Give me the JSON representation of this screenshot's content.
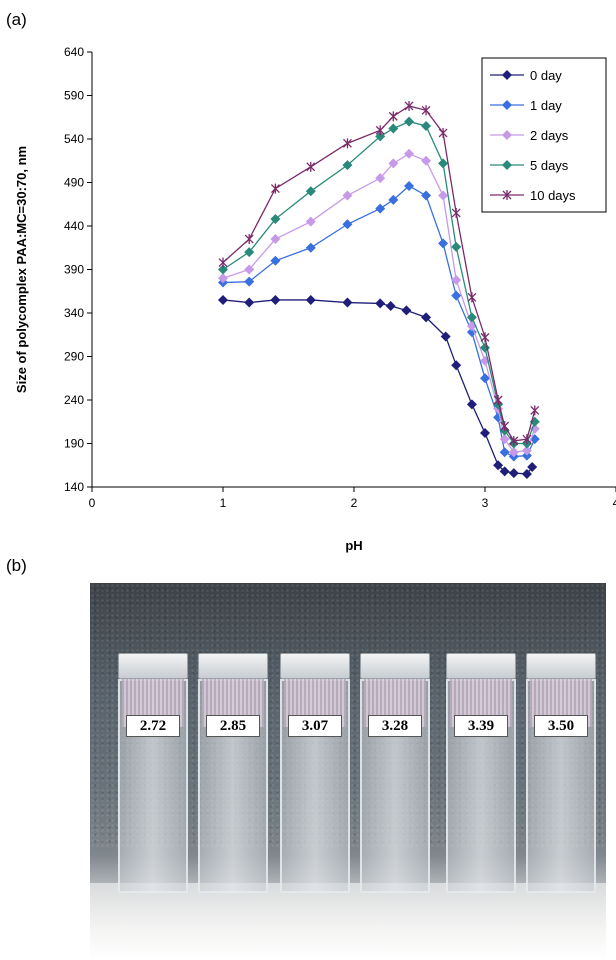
{
  "panels": {
    "a_label": "(a)",
    "b_label": "(b)"
  },
  "chart_data": {
    "type": "line",
    "xlabel": "pH",
    "ylabel": "Size of polycomplex PAA:MC=30:70, nm",
    "xlim": [
      0,
      4
    ],
    "ylim": [
      140,
      640
    ],
    "xticks": [
      "0",
      "1",
      "2",
      "3",
      "4"
    ],
    "yticks": [
      "140",
      "190",
      "240",
      "290",
      "340",
      "390",
      "440",
      "490",
      "540",
      "590",
      "640"
    ],
    "legend_position": "top-right",
    "series": [
      {
        "name": "0 day",
        "color": "#1f1f7a",
        "marker": "diamond",
        "x": [
          1.0,
          1.2,
          1.4,
          1.67,
          1.95,
          2.2,
          2.28,
          2.4,
          2.55,
          2.7,
          2.78,
          2.9,
          3.0,
          3.1,
          3.15,
          3.22,
          3.32,
          3.36
        ],
        "y": [
          355,
          352,
          355,
          355,
          352,
          351,
          348,
          343,
          335,
          313,
          280,
          235,
          202,
          165,
          158,
          156,
          155,
          163
        ]
      },
      {
        "name": "1 day",
        "color": "#3a6fe0",
        "marker": "diamond",
        "x": [
          1.0,
          1.2,
          1.4,
          1.67,
          1.95,
          2.2,
          2.3,
          2.42,
          2.55,
          2.68,
          2.78,
          2.9,
          3.0,
          3.1,
          3.15,
          3.22,
          3.32,
          3.38
        ],
        "y": [
          375,
          376,
          400,
          415,
          442,
          460,
          470,
          486,
          475,
          420,
          360,
          318,
          265,
          220,
          180,
          175,
          176,
          195
        ]
      },
      {
        "name": "2 days",
        "color": "#c79ae8",
        "marker": "diamond",
        "x": [
          1.0,
          1.2,
          1.4,
          1.67,
          1.95,
          2.2,
          2.3,
          2.42,
          2.55,
          2.68,
          2.78,
          2.9,
          3.0,
          3.1,
          3.15,
          3.22,
          3.32,
          3.38
        ],
        "y": [
          380,
          390,
          425,
          445,
          475,
          495,
          512,
          523,
          515,
          475,
          378,
          325,
          285,
          230,
          195,
          180,
          182,
          207
        ]
      },
      {
        "name": "5 days",
        "color": "#2a8a7a",
        "marker": "diamond",
        "x": [
          1.0,
          1.2,
          1.4,
          1.67,
          1.95,
          2.2,
          2.3,
          2.42,
          2.55,
          2.68,
          2.78,
          2.9,
          3.0,
          3.1,
          3.15,
          3.22,
          3.32,
          3.38
        ],
        "y": [
          390,
          410,
          448,
          480,
          510,
          543,
          552,
          560,
          555,
          512,
          416,
          335,
          300,
          235,
          205,
          190,
          190,
          215
        ]
      },
      {
        "name": "10 days",
        "color": "#7a2a6a",
        "marker": "star",
        "x": [
          1.0,
          1.2,
          1.4,
          1.67,
          1.95,
          2.2,
          2.3,
          2.42,
          2.55,
          2.68,
          2.78,
          2.9,
          3.0,
          3.1,
          3.15,
          3.22,
          3.32,
          3.38
        ],
        "y": [
          398,
          425,
          483,
          508,
          535,
          550,
          566,
          578,
          573,
          547,
          455,
          358,
          312,
          240,
          210,
          193,
          195,
          228
        ]
      }
    ]
  },
  "photo": {
    "cuvettes": [
      {
        "label": "2.72"
      },
      {
        "label": "2.85"
      },
      {
        "label": "3.07"
      },
      {
        "label": "3.28"
      },
      {
        "label": "3.39"
      },
      {
        "label": "3.50"
      }
    ]
  }
}
